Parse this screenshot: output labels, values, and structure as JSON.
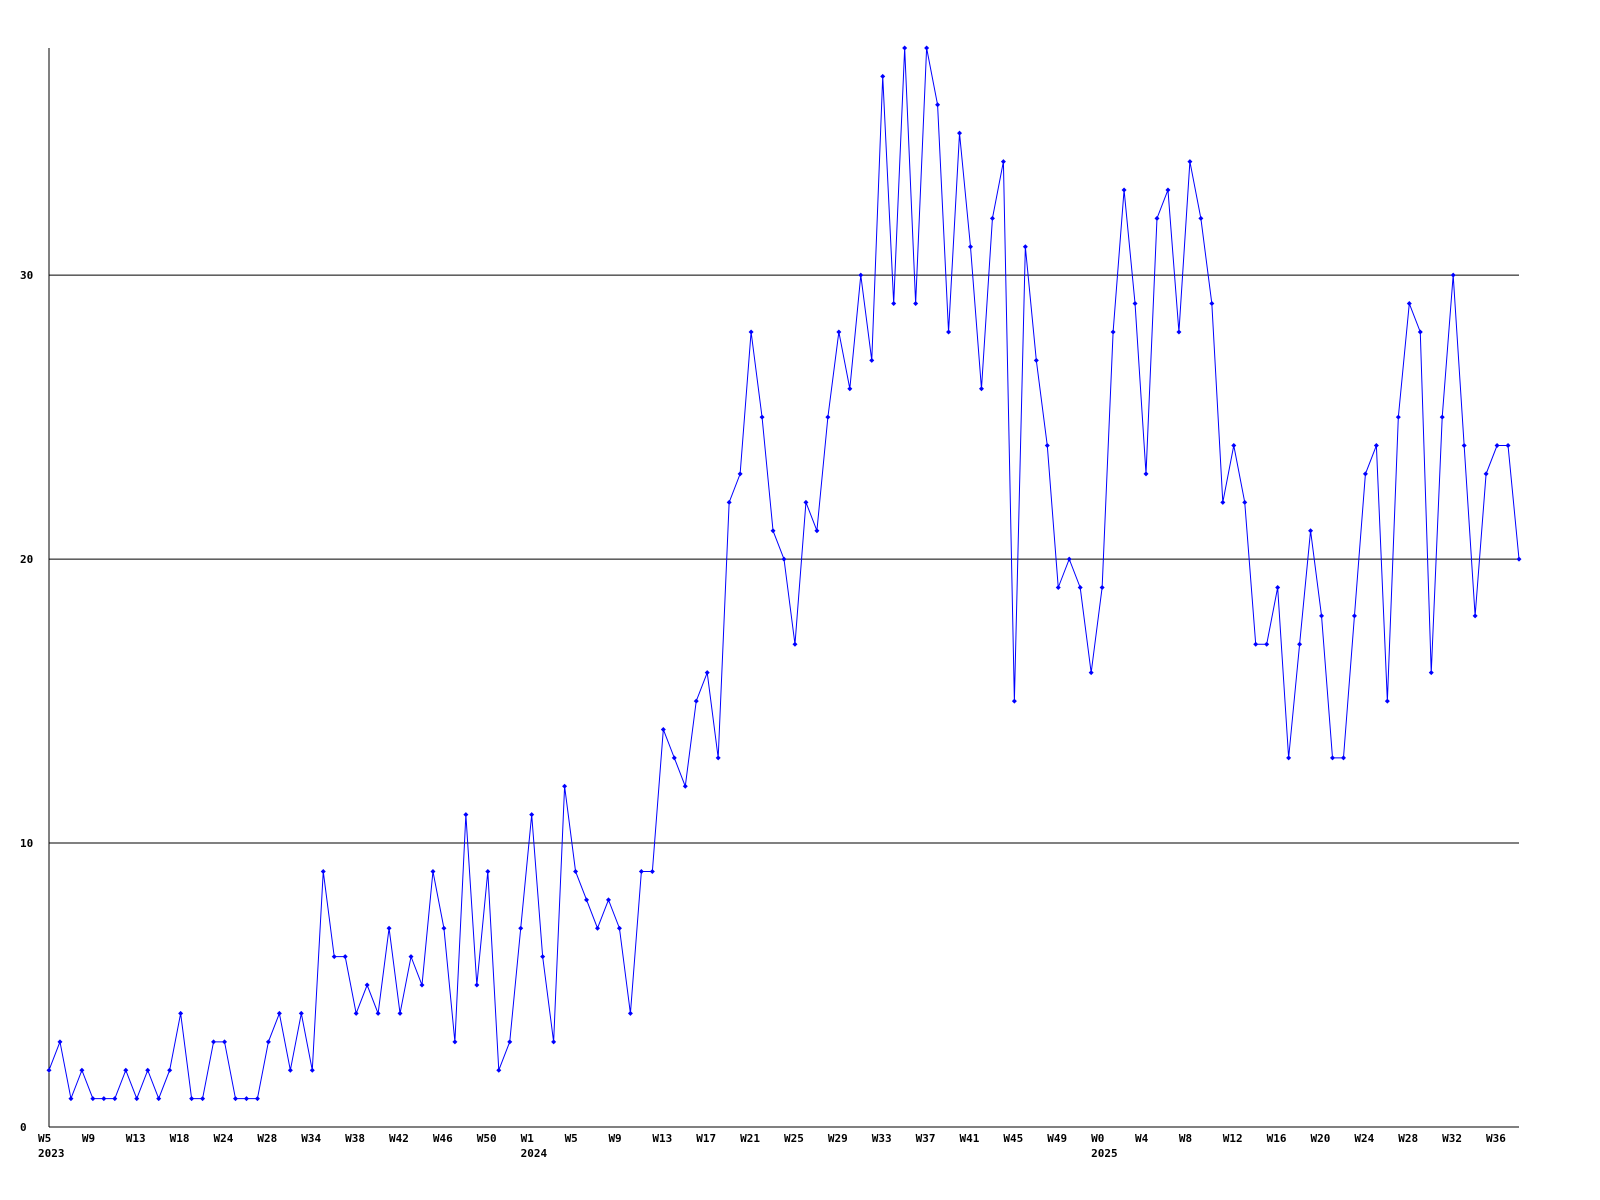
{
  "chart_data": {
    "type": "line",
    "categories": [
      "W5",
      null,
      null,
      null,
      "W9",
      null,
      null,
      null,
      "W13",
      null,
      null,
      null,
      "W18",
      null,
      null,
      null,
      "W24",
      null,
      null,
      null,
      "W28",
      null,
      null,
      null,
      "W34",
      null,
      null,
      null,
      "W38",
      null,
      null,
      null,
      "W42",
      null,
      null,
      null,
      "W46",
      null,
      null,
      null,
      "W50",
      null,
      null,
      null,
      "W1",
      null,
      null,
      null,
      "W5",
      null,
      null,
      null,
      "W9",
      null,
      null,
      null,
      "W13",
      null,
      null,
      null,
      "W17",
      null,
      null,
      null,
      "W21",
      null,
      null,
      null,
      "W25",
      null,
      null,
      null,
      "W29",
      null,
      null,
      null,
      "W33",
      null,
      null,
      null,
      "W37",
      null,
      null,
      null,
      "W41",
      null,
      null,
      null,
      "W45",
      null,
      null,
      null,
      "W49",
      null,
      null,
      null,
      "W0",
      null,
      null,
      null,
      "W4",
      null,
      null,
      null,
      "W8",
      null,
      null,
      null,
      "W12",
      null,
      null,
      null,
      "W16",
      null,
      null,
      null,
      "W20",
      null,
      null,
      null,
      "W24",
      null,
      null,
      null,
      "W28",
      null,
      null,
      null,
      "W32",
      null,
      null,
      null,
      "W36",
      null,
      null
    ],
    "category_years": [
      "2023",
      null,
      null,
      null,
      null,
      null,
      null,
      null,
      null,
      null,
      null,
      null,
      null,
      null,
      null,
      null,
      null,
      null,
      null,
      null,
      null,
      null,
      null,
      null,
      null,
      null,
      null,
      null,
      null,
      null,
      null,
      null,
      null,
      null,
      null,
      null,
      null,
      null,
      null,
      null,
      null,
      null,
      null,
      null,
      "2024",
      null,
      null,
      null,
      null,
      null,
      null,
      null,
      null,
      null,
      null,
      null,
      null,
      null,
      null,
      null,
      null,
      null,
      null,
      null,
      null,
      null,
      null,
      null,
      null,
      null,
      null,
      null,
      null,
      null,
      null,
      null,
      null,
      null,
      null,
      null,
      null,
      null,
      null,
      null,
      null,
      null,
      null,
      null,
      null,
      null,
      null,
      null,
      null,
      null,
      null,
      null,
      "2025",
      null,
      null,
      null,
      null,
      null,
      null,
      null,
      null,
      null,
      null,
      null,
      null,
      null,
      null,
      null,
      null,
      null,
      null,
      null,
      null,
      null,
      null,
      null,
      null,
      null,
      null,
      null,
      null,
      null,
      null,
      null,
      null,
      null,
      null,
      null,
      null,
      null
    ],
    "series": [
      {
        "color": "#0000ff",
        "values": [
          2,
          3,
          1,
          2,
          1,
          1,
          1,
          2,
          1,
          2,
          1,
          2,
          4,
          1,
          1,
          3,
          3,
          1,
          1,
          1,
          3,
          4,
          2,
          4,
          2,
          9,
          6,
          6,
          4,
          5,
          4,
          7,
          4,
          6,
          5,
          9,
          7,
          3,
          11,
          5,
          9,
          2,
          3,
          7,
          11,
          6,
          3,
          12,
          9,
          8,
          7,
          8,
          7,
          4,
          9,
          9,
          14,
          13,
          12,
          15,
          16,
          13,
          22,
          23,
          28,
          25,
          21,
          20,
          17,
          22,
          21,
          25,
          28,
          26,
          30,
          27,
          37,
          29,
          38,
          29,
          38,
          36,
          28,
          35,
          31,
          26,
          32,
          34,
          15,
          31,
          27,
          24,
          19,
          20,
          19,
          16,
          19,
          28,
          33,
          29,
          23,
          32,
          33,
          28,
          34,
          32,
          29,
          22,
          24,
          22,
          17,
          17,
          19,
          13,
          17,
          21,
          18,
          13,
          13,
          18,
          23,
          24,
          15,
          25,
          29,
          28,
          16,
          25,
          30,
          24,
          18,
          23,
          24,
          24,
          20
        ]
      }
    ],
    "ylim": [
      0,
      38
    ],
    "yticks": [
      0,
      10,
      20,
      30
    ],
    "grid": true
  }
}
